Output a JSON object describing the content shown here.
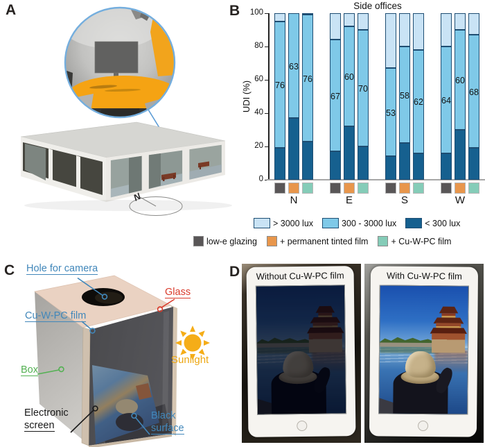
{
  "figure": {
    "panel_a_label": "A",
    "panel_b_label": "B",
    "panel_c_label": "C",
    "panel_d_label": "D"
  },
  "panel_a": {
    "compass_north": "N"
  },
  "chart_data": {
    "type": "bar",
    "variant": "stacked-percentage",
    "title": "Side offices",
    "ylabel": "UDI (%)",
    "ylim": [
      0,
      100
    ],
    "yticks": [
      0,
      20,
      40,
      60,
      80,
      100
    ],
    "categories": [
      "N",
      "E",
      "S",
      "W"
    ],
    "bar_conditions": [
      "low-e glazing",
      "+ permanent tinted film",
      "+ Cu-W-PC film"
    ],
    "condition_colors": [
      "#595657",
      "#e8964c",
      "#85ccb8"
    ],
    "series": [
      {
        "name": "< 300 lux",
        "color": "#16608f",
        "values": [
          [
            19,
            37,
            23
          ],
          [
            17,
            32,
            20
          ],
          [
            14,
            22,
            16
          ],
          [
            16,
            30,
            19
          ]
        ]
      },
      {
        "name": "300 - 3000 lux",
        "color": "#7fc9e8",
        "labeled": true,
        "values": [
          [
            76,
            63,
            76
          ],
          [
            67,
            60,
            70
          ],
          [
            53,
            58,
            62
          ],
          [
            64,
            60,
            68
          ]
        ]
      },
      {
        "name": "> 3000 lux",
        "color": "#c9e3f5",
        "values": [
          [
            5,
            0,
            1
          ],
          [
            16,
            8,
            10
          ],
          [
            33,
            20,
            22
          ],
          [
            20,
            10,
            13
          ]
        ]
      }
    ],
    "legend_lux": [
      "> 3000 lux",
      "300 - 3000 lux",
      "< 300 lux"
    ],
    "legend_lux_colors": [
      "#c9e3f5",
      "#7fc9e8",
      "#16608f"
    ],
    "legend_glazing": [
      "low-e glazing",
      "+ permanent tinted film",
      "+ Cu-W-PC film"
    ],
    "legend_glazing_colors": [
      "#595657",
      "#e8964c",
      "#85ccb8"
    ],
    "grid": false,
    "legend_position": "bottom"
  },
  "panel_c": {
    "labels": {
      "hole": "Hole for camera",
      "glass": "Glass",
      "film": "Cu-W-PC film",
      "box": "Box",
      "screen_line1": "Electronic",
      "screen_line2": "screen",
      "surface_line1": "Black",
      "surface_line2": "surface",
      "sunlight": "Sunlight"
    },
    "label_colors": {
      "blue": "#4187ba",
      "red": "#d93a2b",
      "green": "#53b152",
      "black": "#1a1a1a",
      "gold": "#eda712"
    }
  },
  "panel_d": {
    "left_title": "Without Cu-W-PC film",
    "right_title": "With Cu-W-PC film"
  }
}
